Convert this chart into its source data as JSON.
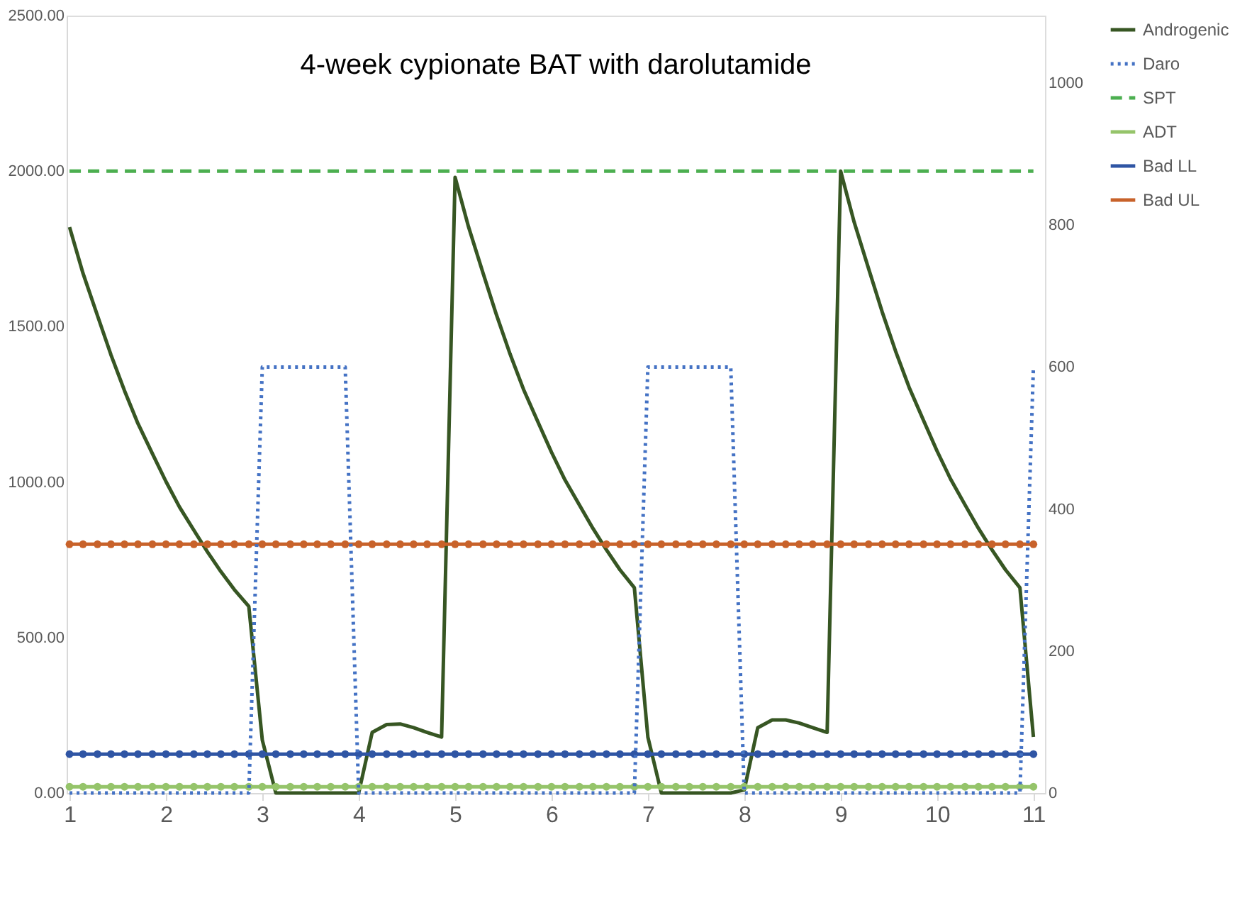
{
  "chart_data": {
    "type": "line",
    "title": "4-week cypionate BAT with darolutamide",
    "x": [
      1,
      1.14,
      1.29,
      1.43,
      1.57,
      1.71,
      1.86,
      2,
      2.14,
      2.29,
      2.43,
      2.57,
      2.71,
      2.86,
      3,
      3.14,
      3.29,
      3.43,
      3.57,
      3.71,
      3.86,
      4,
      4.14,
      4.29,
      4.43,
      4.57,
      4.71,
      4.86,
      5,
      5.14,
      5.29,
      5.43,
      5.57,
      5.71,
      5.86,
      6,
      6.14,
      6.29,
      6.43,
      6.57,
      6.71,
      6.86,
      7,
      7.14,
      7.29,
      7.43,
      7.57,
      7.71,
      7.86,
      8,
      8.14,
      8.29,
      8.43,
      8.57,
      8.71,
      8.86,
      9,
      9.14,
      9.29,
      9.43,
      9.57,
      9.71,
      9.86,
      10,
      10.14,
      10.29,
      10.43,
      10.57,
      10.71,
      10.86,
      11
    ],
    "series": [
      {
        "name": "Androgenic",
        "color": "#375623",
        "line_style": "solid",
        "marker": "none",
        "values": [
          1820,
          1671,
          1535,
          1409,
          1294,
          1188,
          1091,
          1002,
          920,
          845,
          776,
          712,
          654,
          600,
          170,
          0,
          0,
          0,
          0,
          0,
          0,
          0,
          195,
          220,
          222,
          210,
          195,
          180,
          1980,
          1820,
          1672,
          1537,
          1412,
          1298,
          1193,
          1096,
          1007,
          926,
          851,
          782,
          718,
          660,
          180,
          0,
          0,
          0,
          0,
          0,
          0,
          10,
          210,
          235,
          235,
          225,
          210,
          195,
          2000,
          1836,
          1686,
          1548,
          1421,
          1305,
          1198,
          1100,
          1010,
          927,
          851,
          782,
          718,
          660,
          180
        ]
      },
      {
        "name": "Daro",
        "color": "#4472c4",
        "line_style": "dotted",
        "marker": "none",
        "axis": "y2",
        "values": [
          0,
          0,
          0,
          0,
          0,
          0,
          0,
          0,
          0,
          0,
          0,
          0,
          0,
          0,
          600,
          600,
          600,
          600,
          600,
          600,
          600,
          0,
          0,
          0,
          0,
          0,
          0,
          0,
          0,
          0,
          0,
          0,
          0,
          0,
          0,
          0,
          0,
          0,
          0,
          0,
          0,
          0,
          600,
          600,
          600,
          600,
          600,
          600,
          600,
          0,
          0,
          0,
          0,
          0,
          0,
          0,
          0,
          0,
          0,
          0,
          0,
          0,
          0,
          0,
          0,
          0,
          0,
          0,
          0,
          0,
          600
        ]
      },
      {
        "name": "SPT",
        "color": "#4caf50",
        "line_style": "dashed",
        "marker": "none",
        "values": [
          2000,
          2000,
          2000,
          2000,
          2000,
          2000,
          2000,
          2000,
          2000,
          2000,
          2000,
          2000,
          2000,
          2000,
          2000,
          2000,
          2000,
          2000,
          2000,
          2000,
          2000,
          2000,
          2000,
          2000,
          2000,
          2000,
          2000,
          2000,
          2000,
          2000,
          2000,
          2000,
          2000,
          2000,
          2000,
          2000,
          2000,
          2000,
          2000,
          2000,
          2000,
          2000,
          2000,
          2000,
          2000,
          2000,
          2000,
          2000,
          2000,
          2000,
          2000,
          2000,
          2000,
          2000,
          2000,
          2000,
          2000,
          2000,
          2000,
          2000,
          2000,
          2000,
          2000,
          2000,
          2000,
          2000,
          2000,
          2000,
          2000,
          2000,
          2000
        ]
      },
      {
        "name": "ADT",
        "color": "#95c46a",
        "line_style": "solid",
        "marker": "circle",
        "values": [
          20,
          20,
          20,
          20,
          20,
          20,
          20,
          20,
          20,
          20,
          20,
          20,
          20,
          20,
          20,
          20,
          20,
          20,
          20,
          20,
          20,
          20,
          20,
          20,
          20,
          20,
          20,
          20,
          20,
          20,
          20,
          20,
          20,
          20,
          20,
          20,
          20,
          20,
          20,
          20,
          20,
          20,
          20,
          20,
          20,
          20,
          20,
          20,
          20,
          20,
          20,
          20,
          20,
          20,
          20,
          20,
          20,
          20,
          20,
          20,
          20,
          20,
          20,
          20,
          20,
          20,
          20,
          20,
          20,
          20,
          20
        ]
      },
      {
        "name": "Bad LL",
        "color": "#2f55a4",
        "line_style": "solid",
        "marker": "circle",
        "values": [
          125,
          125,
          125,
          125,
          125,
          125,
          125,
          125,
          125,
          125,
          125,
          125,
          125,
          125,
          125,
          125,
          125,
          125,
          125,
          125,
          125,
          125,
          125,
          125,
          125,
          125,
          125,
          125,
          125,
          125,
          125,
          125,
          125,
          125,
          125,
          125,
          125,
          125,
          125,
          125,
          125,
          125,
          125,
          125,
          125,
          125,
          125,
          125,
          125,
          125,
          125,
          125,
          125,
          125,
          125,
          125,
          125,
          125,
          125,
          125,
          125,
          125,
          125,
          125,
          125,
          125,
          125,
          125,
          125,
          125,
          125
        ]
      },
      {
        "name": "Bad UL",
        "color": "#c8622a",
        "line_style": "solid",
        "marker": "circle",
        "values": [
          800,
          800,
          800,
          800,
          800,
          800,
          800,
          800,
          800,
          800,
          800,
          800,
          800,
          800,
          800,
          800,
          800,
          800,
          800,
          800,
          800,
          800,
          800,
          800,
          800,
          800,
          800,
          800,
          800,
          800,
          800,
          800,
          800,
          800,
          800,
          800,
          800,
          800,
          800,
          800,
          800,
          800,
          800,
          800,
          800,
          800,
          800,
          800,
          800,
          800,
          800,
          800,
          800,
          800,
          800,
          800,
          800,
          800,
          800,
          800,
          800,
          800,
          800,
          800,
          800,
          800,
          800,
          800,
          800,
          800,
          800
        ]
      }
    ],
    "xlim": [
      0.97,
      11.12
    ],
    "xticks": [
      1,
      2,
      3,
      4,
      5,
      6,
      7,
      8,
      9,
      10,
      11
    ],
    "ylim": [
      0,
      2500
    ],
    "yticks": [
      {
        "value": 0,
        "label": "0.00"
      },
      {
        "value": 500,
        "label": "500.00"
      },
      {
        "value": 1000,
        "label": "1000.00"
      },
      {
        "value": 1500,
        "label": "1500.00"
      },
      {
        "value": 2000,
        "label": "2000.00"
      },
      {
        "value": 2500,
        "label": "2500.00"
      }
    ],
    "y2lim": [
      0,
      1095
    ],
    "y2ticks": [
      0,
      200,
      400,
      600,
      800,
      1000
    ],
    "legend": "right"
  }
}
